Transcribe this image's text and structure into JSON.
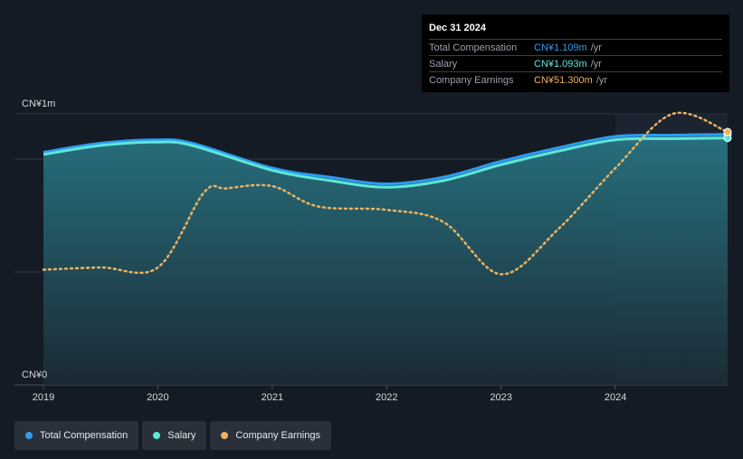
{
  "chart_data": {
    "type": "area",
    "title": "",
    "ylabel_top": "CN¥1m",
    "ylabel_bottom": "CN¥0",
    "ylim": [
      0,
      1.2
    ],
    "xlim": [
      2019,
      2024.98
    ],
    "x_ticks": [
      "2019",
      "2020",
      "2021",
      "2022",
      "2023",
      "2024"
    ],
    "highlight_start": 2024,
    "series": [
      {
        "name": "Total Compensation",
        "color": "#2d9cf0",
        "x": [
          2019,
          2019.5,
          2020,
          2020.3,
          2021,
          2021.5,
          2022,
          2022.5,
          2023,
          2023.5,
          2024,
          2024.5,
          2024.98
        ],
        "values": [
          1.03,
          1.07,
          1.085,
          1.07,
          0.96,
          0.92,
          0.89,
          0.92,
          0.99,
          1.05,
          1.1,
          1.106,
          1.109
        ]
      },
      {
        "name": "Salary",
        "color": "#5ee6d8",
        "x": [
          2019,
          2019.5,
          2020,
          2020.3,
          2021,
          2021.5,
          2022,
          2022.5,
          2023,
          2023.5,
          2024,
          2024.5,
          2024.98
        ],
        "values": [
          1.02,
          1.06,
          1.075,
          1.06,
          0.95,
          0.905,
          0.875,
          0.905,
          0.975,
          1.035,
          1.085,
          1.09,
          1.093
        ]
      },
      {
        "name": "Company Earnings",
        "color": "#f0b25e",
        "x": [
          2019,
          2019.5,
          2020,
          2020.4,
          2020.6,
          2021,
          2021.4,
          2022,
          2022.5,
          2023,
          2023.5,
          2024,
          2024.5,
          2024.98
        ],
        "values": [
          0.51,
          0.52,
          0.52,
          0.85,
          0.87,
          0.88,
          0.79,
          0.775,
          0.72,
          0.49,
          0.69,
          0.96,
          1.2,
          1.12
        ]
      }
    ]
  },
  "tooltip": {
    "date": "Dec 31 2024",
    "rows": [
      {
        "label": "Total Compensation",
        "value": "CN¥1.109m",
        "unit": "/yr"
      },
      {
        "label": "Salary",
        "value": "CN¥1.093m",
        "unit": "/yr"
      },
      {
        "label": "Company Earnings",
        "value": "CN¥51.300m",
        "unit": "/yr"
      }
    ]
  },
  "legend": [
    {
      "label": "Total Compensation",
      "color": "#2d9cf0"
    },
    {
      "label": "Salary",
      "color": "#5ee6d8"
    },
    {
      "label": "Company Earnings",
      "color": "#f0b25e"
    }
  ]
}
